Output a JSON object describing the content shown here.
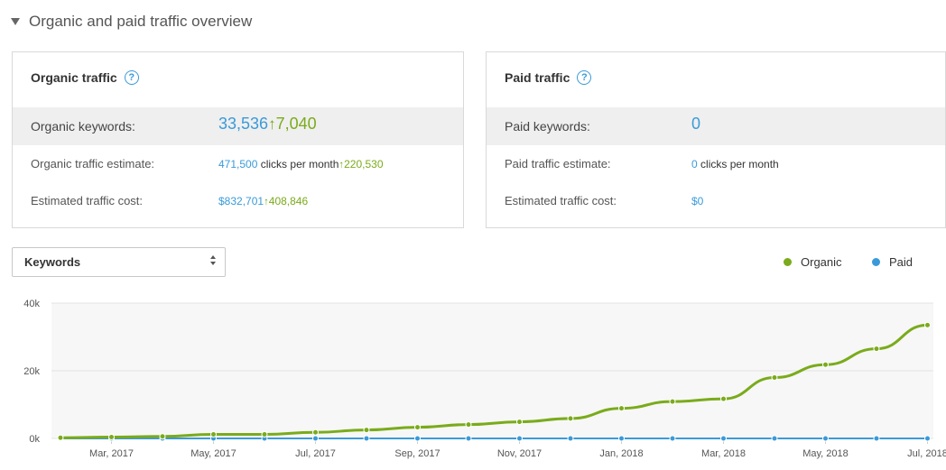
{
  "section": {
    "title": "Organic and paid traffic overview"
  },
  "organic": {
    "title": "Organic traffic",
    "keywords_label": "Organic keywords:",
    "keywords_value": "33,536",
    "keywords_delta": "7,040",
    "traffic_label": "Organic traffic estimate:",
    "traffic_value": "471,500",
    "traffic_unit": " clicks per month",
    "traffic_delta": "220,530",
    "cost_label": "Estimated traffic cost:",
    "cost_value": "$832,701",
    "cost_delta": "408,846"
  },
  "paid": {
    "title": "Paid traffic",
    "keywords_label": "Paid keywords:",
    "keywords_value": "0",
    "traffic_label": "Paid traffic estimate:",
    "traffic_value": "0",
    "traffic_unit": " clicks per month",
    "cost_label": "Estimated traffic cost:",
    "cost_value": "$0"
  },
  "select": {
    "value": "Keywords"
  },
  "legend": {
    "organic": "Organic",
    "paid": "Paid"
  },
  "colors": {
    "organic": "#7aab1b",
    "paid": "#3a9ad9",
    "grid": "#e3e3e3",
    "plot_bg": "#f7f7f7"
  },
  "chart_data": {
    "type": "line",
    "title": "",
    "xlabel": "",
    "ylabel": "",
    "ylim": [
      0,
      40000
    ],
    "y_ticks": [
      0,
      20000,
      40000
    ],
    "y_tick_labels": [
      "0k",
      "20k",
      "40k"
    ],
    "x": [
      "Feb, 2017",
      "Mar, 2017",
      "Apr, 2017",
      "May, 2017",
      "Jun, 2017",
      "Jul, 2017",
      "Aug, 2017",
      "Sep, 2017",
      "Oct, 2017",
      "Nov, 2017",
      "Dec, 2017",
      "Jan, 2018",
      "Feb, 2018",
      "Mar, 2018",
      "Apr, 2018",
      "May, 2018",
      "Jun, 2018",
      "Jul, 2018"
    ],
    "x_tick_labels": [
      "Mar, 2017",
      "May, 2017",
      "Jul, 2017",
      "Sep, 2017",
      "Nov, 2017",
      "Jan, 2018",
      "Mar, 2018",
      "May, 2018",
      "Jul, 2018"
    ],
    "series": [
      {
        "name": "Organic",
        "values": [
          200,
          400,
          600,
          1200,
          1200,
          1800,
          2500,
          3300,
          4100,
          4900,
          5900,
          8900,
          10900,
          11700,
          18000,
          21800,
          26500,
          33500
        ]
      },
      {
        "name": "Paid",
        "values": [
          0,
          0,
          0,
          0,
          0,
          0,
          0,
          0,
          0,
          0,
          0,
          0,
          0,
          0,
          0,
          0,
          0,
          0
        ]
      }
    ],
    "grid": true,
    "legend_position": "top-right"
  }
}
